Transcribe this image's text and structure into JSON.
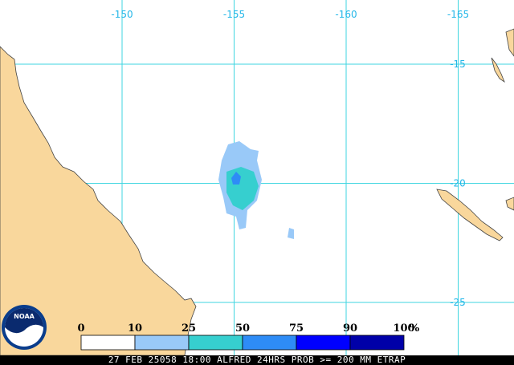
{
  "map": {
    "longitudes": [
      -150,
      -155,
      -160,
      -165
    ],
    "latitudes": [
      -15,
      -20,
      -25
    ],
    "logo": "NOAA",
    "legend": {
      "levels": [
        0,
        10,
        25,
        50,
        75,
        90,
        100
      ],
      "unit": "%",
      "colors": [
        "#ffffff",
        "#99c9f8",
        "#36cfcf",
        "#2e8cf6",
        "#0000ff",
        "#0000a8"
      ]
    },
    "footer": "27 FEB 25058 18:00 ALFRED 24HRS PROB >= 200 MM ETRAP"
  }
}
